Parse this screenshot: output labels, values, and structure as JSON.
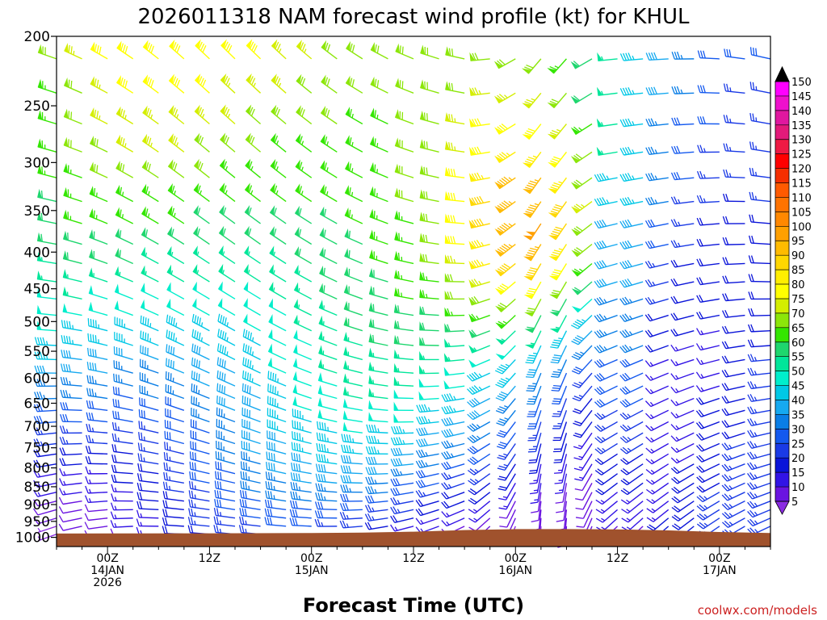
{
  "chart_data": {
    "type": "wind-profile",
    "title": "2026011318 NAM forecast wind profile (kt) for KHUL",
    "xlabel": "Forecast Time (UTC)",
    "credit": "coolwx.com/models",
    "y_ticks": [
      "200",
      "250",
      "300",
      "350",
      "400",
      "450",
      "500",
      "550",
      "600",
      "650",
      "700",
      "750",
      "800",
      "850",
      "900",
      "950",
      "1000"
    ],
    "x_ticks": [
      {
        "lines": [
          "00Z",
          "14JAN",
          "2026"
        ],
        "hour": 6
      },
      {
        "lines": [
          "12Z"
        ],
        "hour": 18
      },
      {
        "lines": [
          "00Z",
          "15JAN"
        ],
        "hour": 30
      },
      {
        "lines": [
          "12Z"
        ],
        "hour": 42
      },
      {
        "lines": [
          "00Z",
          "16JAN"
        ],
        "hour": 54
      },
      {
        "lines": [
          "12Z"
        ],
        "hour": 66
      },
      {
        "lines": [
          "00Z",
          "17JAN"
        ],
        "hour": 78
      }
    ],
    "x_range_hours": [
      0,
      84
    ],
    "p_range": [
      200,
      1030
    ],
    "colorbar_ticks": [
      "150",
      "145",
      "140",
      "135",
      "130",
      "125",
      "120",
      "115",
      "110",
      "105",
      "100",
      "95",
      "90",
      "85",
      "80",
      "75",
      "70",
      "65",
      "60",
      "55",
      "50",
      "45",
      "40",
      "35",
      "30",
      "25",
      "20",
      "15",
      "10",
      "5"
    ],
    "colorbar_colors": [
      "#ff00ff",
      "#ee11cc",
      "#e0189f",
      "#e31a7a",
      "#ee1a44",
      "#ff0000",
      "#f52f00",
      "#ff5a00",
      "#ff7300",
      "#ff8800",
      "#ffa000",
      "#ffbb00",
      "#ffd700",
      "#ffee00",
      "#ffff00",
      "#d4ee00",
      "#8ce60a",
      "#34e600",
      "#1ed66e",
      "#00e69a",
      "#00eecc",
      "#00c8e6",
      "#16a9f0",
      "#0a7ee6",
      "#1459ef",
      "#1a3ae6",
      "#0a14d9",
      "#3214e6",
      "#6a14e0",
      "#8a2be2"
    ],
    "terrain_color": "#a0522d"
  }
}
